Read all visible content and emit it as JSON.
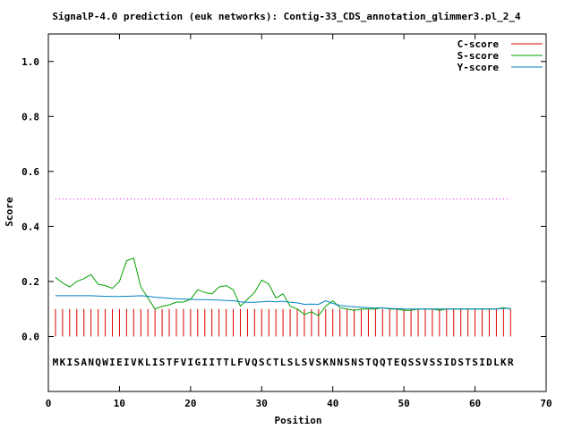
{
  "chart_data": {
    "type": "line",
    "title": "SignalP-4.0 prediction (euk networks): Contig-33_CDS_annotation_glimmer3.pl_2_4",
    "xlabel": "Position",
    "ylabel": "Score",
    "xlim": [
      0,
      70
    ],
    "ylim": [
      -0.2,
      1.1
    ],
    "xticks": [
      "0",
      "10",
      "20",
      "30",
      "40",
      "50",
      "60",
      "70"
    ],
    "yticks": [
      "0.0",
      "0.2",
      "0.4",
      "0.6",
      "0.8",
      "1.0"
    ],
    "xtick_values": [
      0,
      10,
      20,
      30,
      40,
      50,
      60,
      70
    ],
    "ytick_values": [
      0,
      0.2,
      0.4,
      0.6,
      0.8,
      1.0
    ],
    "threshold": 0.5,
    "threshold_color": "#ff00ff",
    "sequence": "MKISANQWIEIVKLISTFVIGIITTLFVQSCTLSLSVSKNNSNSTQQTEQSSVSSIDSTSIDLKR",
    "legend_position": "top-right",
    "series": [
      {
        "name": "C-score",
        "color": "#dd0000",
        "style": "impulses",
        "x": [
          1,
          2,
          3,
          4,
          5,
          6,
          7,
          8,
          9,
          10,
          11,
          12,
          13,
          14,
          15,
          16,
          17,
          18,
          19,
          20,
          21,
          22,
          23,
          24,
          25,
          26,
          27,
          28,
          29,
          30,
          31,
          32,
          33,
          34,
          35,
          36,
          37,
          38,
          39,
          40,
          41,
          42,
          43,
          44,
          45,
          46,
          47,
          48,
          49,
          50,
          51,
          52,
          53,
          54,
          55,
          56,
          57,
          58,
          59,
          60,
          61,
          62,
          63,
          64,
          65
        ],
        "values": [
          0.1,
          0.1,
          0.1,
          0.1,
          0.1,
          0.1,
          0.1,
          0.1,
          0.1,
          0.1,
          0.1,
          0.1,
          0.1,
          0.1,
          0.1,
          0.1,
          0.1,
          0.1,
          0.1,
          0.1,
          0.1,
          0.1,
          0.1,
          0.1,
          0.1,
          0.1,
          0.1,
          0.1,
          0.1,
          0.1,
          0.1,
          0.1,
          0.1,
          0.1,
          0.1,
          0.1,
          0.1,
          0.1,
          0.1,
          0.1,
          0.1,
          0.1,
          0.1,
          0.1,
          0.1,
          0.1,
          0.1,
          0.1,
          0.1,
          0.1,
          0.1,
          0.1,
          0.1,
          0.1,
          0.1,
          0.1,
          0.1,
          0.1,
          0.1,
          0.1,
          0.1,
          0.1,
          0.1,
          0.1,
          0.1
        ]
      },
      {
        "name": "S-score",
        "color": "#00a000",
        "style": "line",
        "x": [
          1,
          2,
          3,
          4,
          5,
          6,
          7,
          8,
          9,
          10,
          11,
          12,
          13,
          14,
          15,
          16,
          17,
          18,
          19,
          20,
          21,
          22,
          23,
          24,
          25,
          26,
          27,
          28,
          29,
          30,
          31,
          32,
          33,
          34,
          35,
          36,
          37,
          38,
          39,
          40,
          41,
          42,
          43,
          44,
          45,
          46,
          47,
          48,
          49,
          50,
          51,
          52,
          53,
          54,
          55,
          56,
          57,
          58,
          59,
          60,
          61,
          62,
          63,
          64,
          65
        ],
        "values": [
          0.215,
          0.195,
          0.18,
          0.2,
          0.21,
          0.225,
          0.19,
          0.185,
          0.175,
          0.2,
          0.275,
          0.285,
          0.18,
          0.14,
          0.1,
          0.11,
          0.115,
          0.125,
          0.125,
          0.135,
          0.17,
          0.16,
          0.155,
          0.18,
          0.185,
          0.17,
          0.11,
          0.135,
          0.16,
          0.205,
          0.19,
          0.14,
          0.155,
          0.11,
          0.1,
          0.08,
          0.09,
          0.075,
          0.11,
          0.13,
          0.105,
          0.1,
          0.095,
          0.1,
          0.1,
          0.1,
          0.105,
          0.1,
          0.1,
          0.095,
          0.095,
          0.1,
          0.1,
          0.1,
          0.095,
          0.1,
          0.1,
          0.1,
          0.1,
          0.1,
          0.1,
          0.1,
          0.1,
          0.105,
          0.1
        ]
      },
      {
        "name": "Y-score",
        "color": "#0080c0",
        "style": "line",
        "x": [
          1,
          2,
          3,
          4,
          5,
          6,
          7,
          8,
          9,
          10,
          11,
          12,
          13,
          14,
          15,
          16,
          17,
          18,
          19,
          20,
          21,
          22,
          23,
          24,
          25,
          26,
          27,
          28,
          29,
          30,
          31,
          32,
          33,
          34,
          35,
          36,
          37,
          38,
          39,
          40,
          41,
          42,
          43,
          44,
          45,
          46,
          47,
          48,
          49,
          50,
          51,
          52,
          53,
          54,
          55,
          56,
          57,
          58,
          59,
          60,
          61,
          62,
          63,
          64,
          65
        ],
        "values": [
          0.148,
          0.148,
          0.148,
          0.148,
          0.148,
          0.148,
          0.147,
          0.146,
          0.145,
          0.145,
          0.146,
          0.147,
          0.148,
          0.146,
          0.143,
          0.141,
          0.139,
          0.137,
          0.136,
          0.135,
          0.134,
          0.134,
          0.133,
          0.132,
          0.131,
          0.13,
          0.126,
          0.124,
          0.124,
          0.126,
          0.128,
          0.126,
          0.128,
          0.124,
          0.122,
          0.117,
          0.118,
          0.117,
          0.13,
          0.12,
          0.113,
          0.11,
          0.108,
          0.106,
          0.105,
          0.104,
          0.104,
          0.102,
          0.101,
          0.1,
          0.1,
          0.1,
          0.1,
          0.1,
          0.1,
          0.1,
          0.1,
          0.1,
          0.1,
          0.1,
          0.1,
          0.1,
          0.1,
          0.102,
          0.102
        ]
      }
    ]
  }
}
